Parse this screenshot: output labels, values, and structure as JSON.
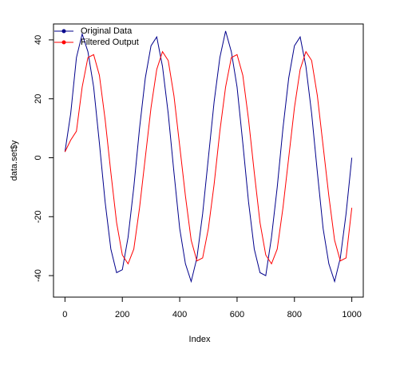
{
  "chart_data": {
    "type": "line",
    "xlabel": "Index",
    "ylabel": "data.set$y",
    "x": [
      0,
      20,
      40,
      60,
      80,
      100,
      120,
      140,
      160,
      180,
      200,
      220,
      240,
      260,
      280,
      300,
      320,
      340,
      360,
      380,
      400,
      420,
      440,
      460,
      480,
      500,
      520,
      540,
      560,
      580,
      600,
      620,
      640,
      660,
      680,
      700,
      720,
      740,
      760,
      780,
      800,
      820,
      840,
      860,
      880,
      900,
      920,
      940,
      960,
      980,
      1000
    ],
    "series": [
      {
        "name": "Original Data",
        "color": "#00008b",
        "values": [
          2,
          15,
          34,
          42,
          36,
          24,
          5,
          -15,
          -31,
          -39,
          -38,
          -27,
          -10,
          10,
          27,
          38,
          41,
          31,
          15,
          -5,
          -24,
          -36,
          -42,
          -34,
          -19,
          0,
          19,
          34,
          43,
          36,
          24,
          5,
          -15,
          -31,
          -39,
          -40,
          -27,
          -10,
          10,
          27,
          38,
          41,
          31,
          15,
          -5,
          -24,
          -36,
          -42,
          -34,
          -19,
          0
        ]
      },
      {
        "name": "Filtered Output",
        "color": "#ff0000",
        "values": [
          2,
          6,
          9,
          24,
          34,
          35,
          28,
          13,
          -5,
          -22,
          -33,
          -36,
          -31,
          -17,
          0,
          17,
          30,
          36,
          33,
          21,
          4,
          -13,
          -28,
          -35,
          -34,
          -24,
          -9,
          9,
          24,
          34,
          35,
          28,
          13,
          -5,
          -22,
          -33,
          -36,
          -31,
          -17,
          0,
          17,
          30,
          36,
          33,
          21,
          4,
          -13,
          -28,
          -35,
          -34,
          -17
        ]
      }
    ],
    "xlim": [
      -40,
      1040
    ],
    "xticks": [
      0,
      200,
      400,
      600,
      800,
      1000
    ],
    "ylim": [
      -47.3,
      45.4
    ],
    "yticks": [
      -40,
      -20,
      0,
      20,
      40
    ],
    "legend": "top-left"
  }
}
